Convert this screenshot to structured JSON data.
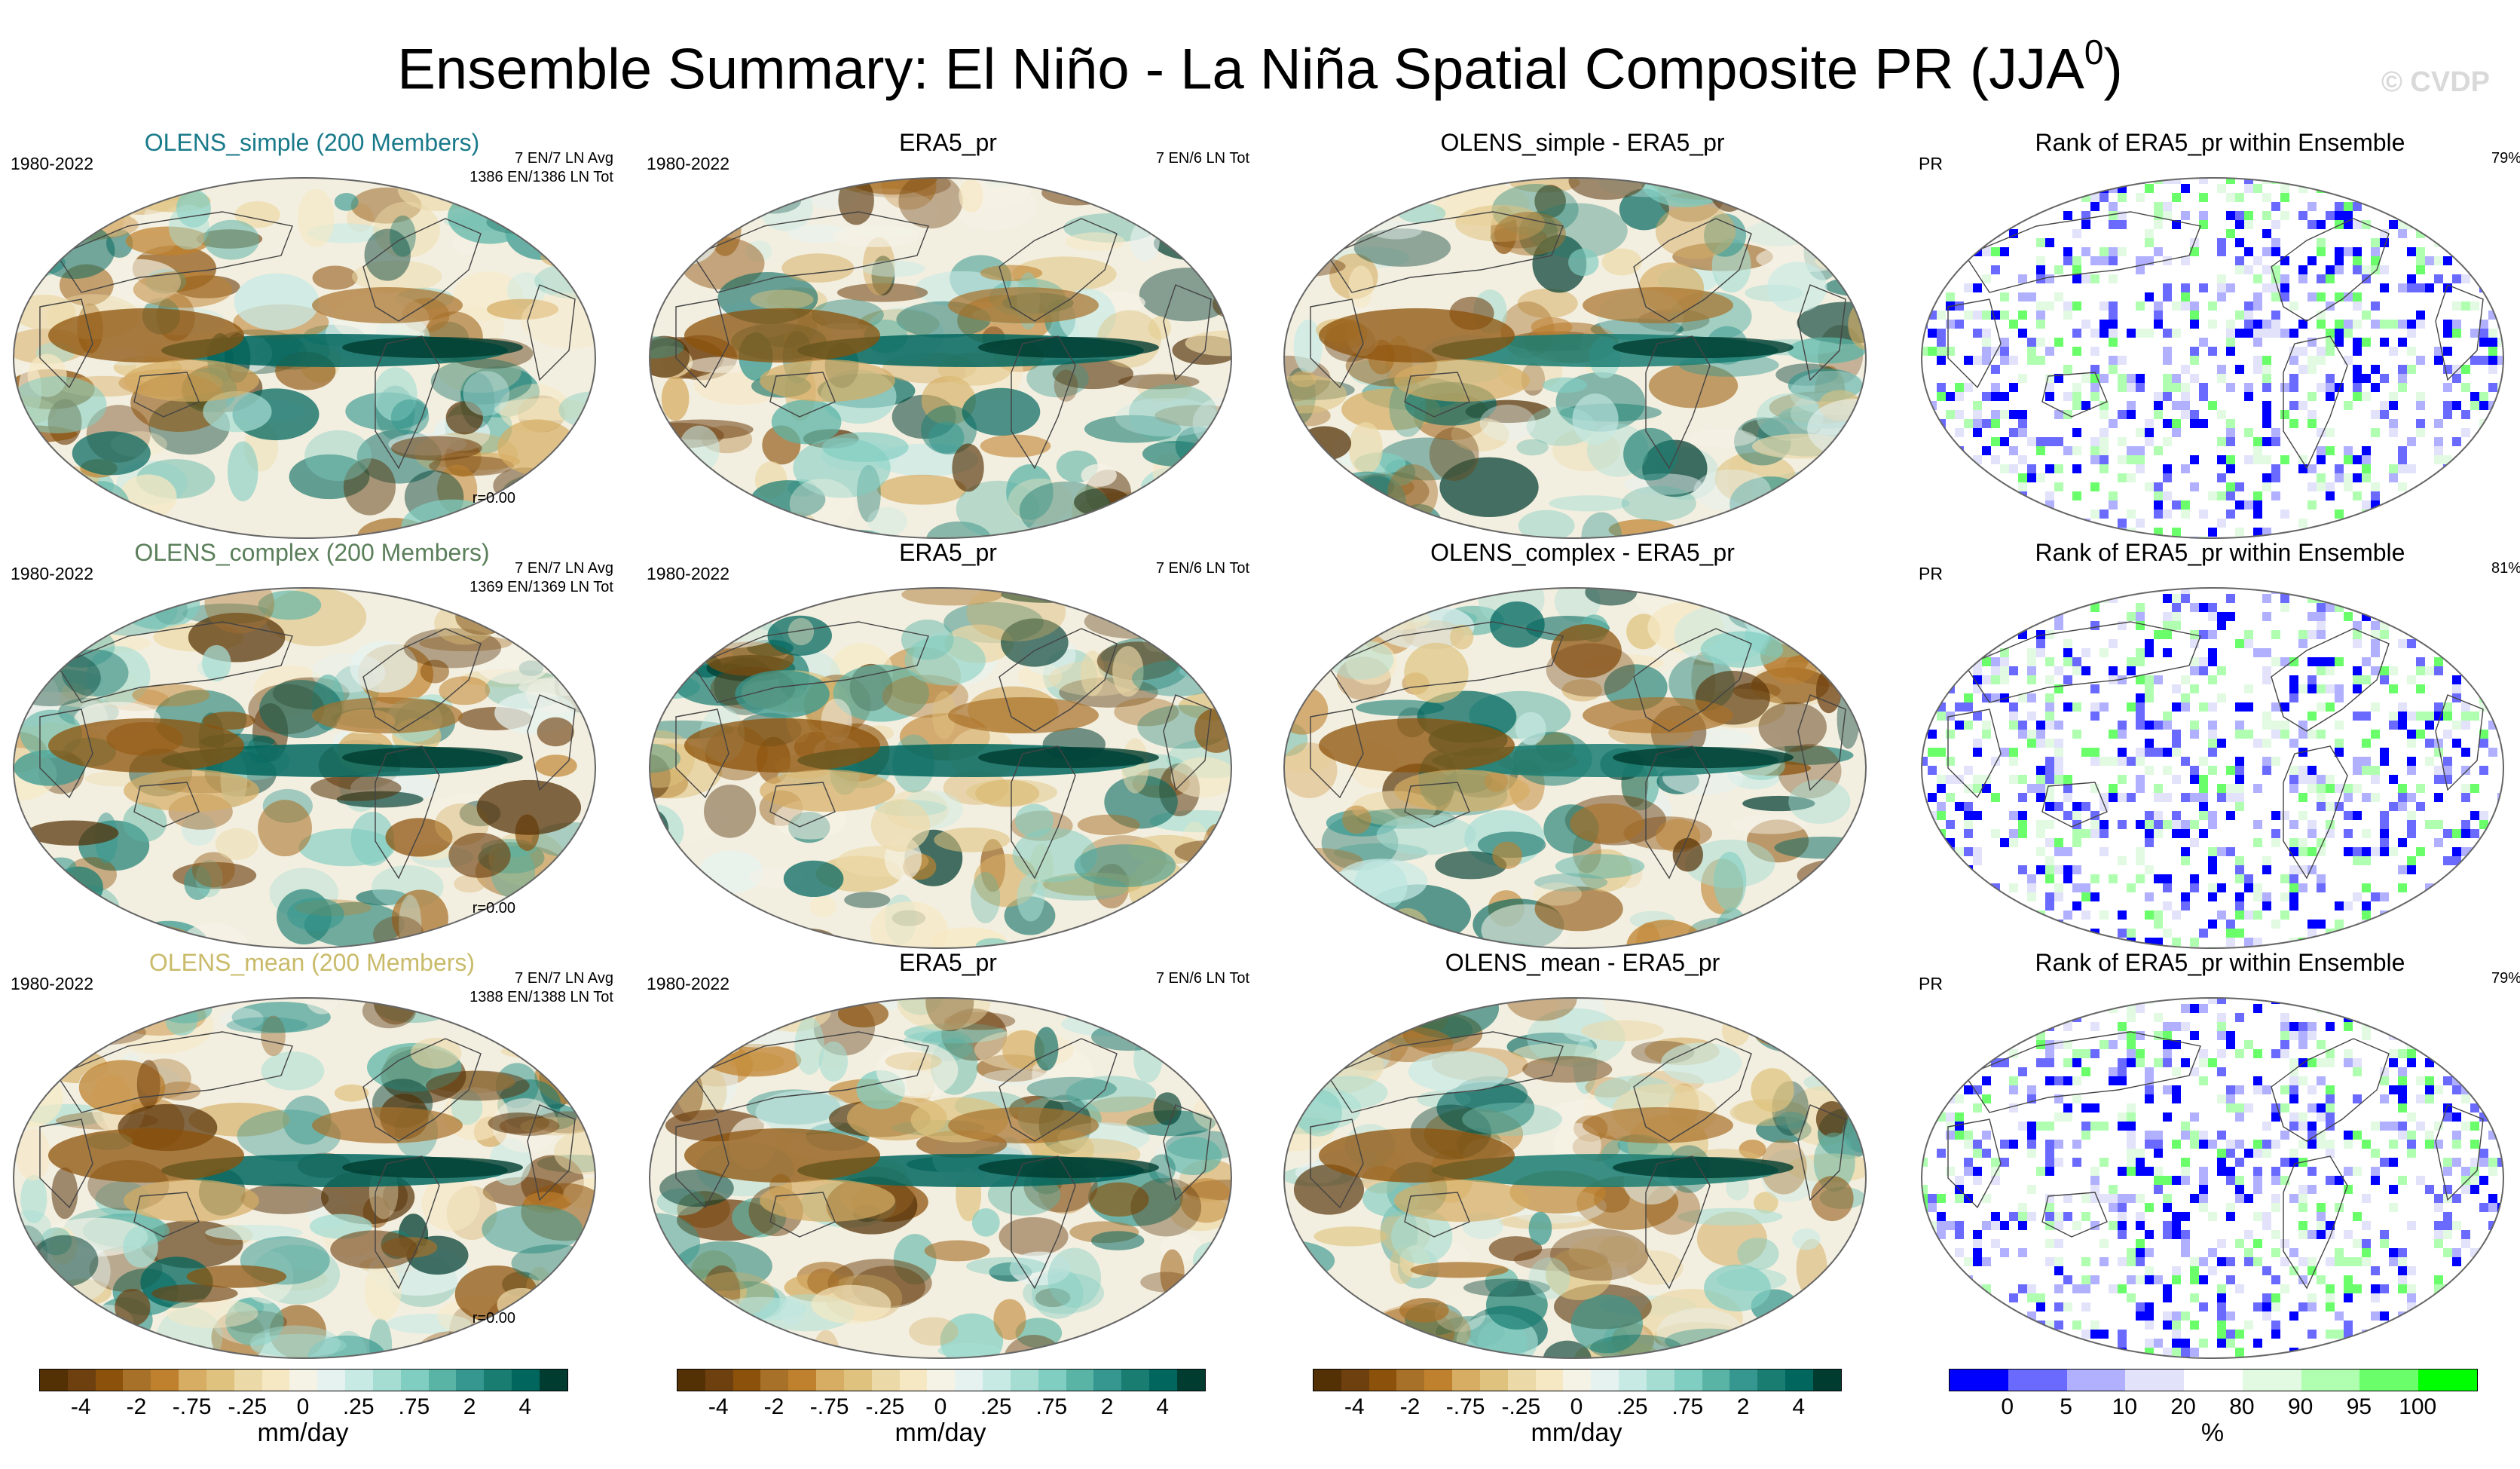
{
  "title": "Ensemble Summary: El Niño - La Niña Spatial Composite PR (JJA",
  "title_sup": "0",
  "title_close": ")",
  "watermark": "© CVDP",
  "rows": [
    {
      "panels": [
        {
          "title": "OLENS_simple (200 Members)",
          "title_color": "#1a7a8a",
          "left": "1980-2022",
          "right1": "7 EN/7 LN Avg",
          "right2": "1386 EN/1386 LN Tot",
          "r": "r=0.00",
          "kind": "model"
        },
        {
          "title": "ERA5_pr",
          "title_color": "#000000",
          "left": "1980-2022",
          "right1": "7 EN/6 LN Tot",
          "right2": "",
          "r": "",
          "kind": "obs"
        },
        {
          "title": "OLENS_simple - ERA5_pr",
          "title_color": "#000000",
          "left": "",
          "right1": "",
          "right2": "",
          "r": "",
          "kind": "diff"
        },
        {
          "title": "Rank of ERA5_pr within Ensemble",
          "title_color": "#000000",
          "left": "PR",
          "right1": "79%",
          "right2": "",
          "r": "",
          "kind": "rank"
        }
      ]
    },
    {
      "panels": [
        {
          "title": "OLENS_complex (200 Members)",
          "title_color": "#5a7f5a",
          "left": "1980-2022",
          "right1": "7 EN/7 LN Avg",
          "right2": "1369 EN/1369 LN Tot",
          "r": "r=0.00",
          "kind": "model"
        },
        {
          "title": "ERA5_pr",
          "title_color": "#000000",
          "left": "1980-2022",
          "right1": "7 EN/6 LN Tot",
          "right2": "",
          "r": "",
          "kind": "obs"
        },
        {
          "title": "OLENS_complex - ERA5_pr",
          "title_color": "#000000",
          "left": "",
          "right1": "",
          "right2": "",
          "r": "",
          "kind": "diff"
        },
        {
          "title": "Rank of ERA5_pr within Ensemble",
          "title_color": "#000000",
          "left": "PR",
          "right1": "81%",
          "right2": "",
          "r": "",
          "kind": "rank"
        }
      ]
    },
    {
      "panels": [
        {
          "title": "OLENS_mean (200 Members)",
          "title_color": "#c9bb6a",
          "left": "1980-2022",
          "right1": "7 EN/7 LN Avg",
          "right2": "1388 EN/1388 LN Tot",
          "r": "r=0.00",
          "kind": "model"
        },
        {
          "title": "ERA5_pr",
          "title_color": "#000000",
          "left": "1980-2022",
          "right1": "7 EN/6 LN Tot",
          "right2": "",
          "r": "",
          "kind": "obs"
        },
        {
          "title": "OLENS_mean - ERA5_pr",
          "title_color": "#000000",
          "left": "",
          "right1": "",
          "right2": "",
          "r": "",
          "kind": "diff"
        },
        {
          "title": "Rank of ERA5_pr within Ensemble",
          "title_color": "#000000",
          "left": "PR",
          "right1": "79%",
          "right2": "",
          "r": "",
          "kind": "rank"
        }
      ]
    }
  ],
  "colorbars": [
    {
      "unit": "mm/day",
      "labels": [
        "-4",
        "-2",
        "-.75",
        "-.25",
        "0",
        ".25",
        ".75",
        "2",
        "4"
      ],
      "colors": [
        "#543005",
        "#6e4010",
        "#8c510a",
        "#a8712a",
        "#bf812d",
        "#d6ad63",
        "#dfc27d",
        "#ecd9a8",
        "#f6e8c3",
        "#f5f2e6",
        "#e6f2f0",
        "#c7eae5",
        "#a6ddd3",
        "#80cdc1",
        "#5ab4a6",
        "#35978f",
        "#1a7d72",
        "#01665e",
        "#003c30"
      ]
    },
    {
      "unit": "mm/day",
      "labels": [
        "-4",
        "-2",
        "-.75",
        "-.25",
        "0",
        ".25",
        ".75",
        "2",
        "4"
      ],
      "colors": [
        "#543005",
        "#6e4010",
        "#8c510a",
        "#a8712a",
        "#bf812d",
        "#d6ad63",
        "#dfc27d",
        "#ecd9a8",
        "#f6e8c3",
        "#f5f2e6",
        "#e6f2f0",
        "#c7eae5",
        "#a6ddd3",
        "#80cdc1",
        "#5ab4a6",
        "#35978f",
        "#1a7d72",
        "#01665e",
        "#003c30"
      ]
    },
    {
      "unit": "mm/day",
      "labels": [
        "-4",
        "-2",
        "-.75",
        "-.25",
        "0",
        ".25",
        ".75",
        "2",
        "4"
      ],
      "colors": [
        "#543005",
        "#6e4010",
        "#8c510a",
        "#a8712a",
        "#bf812d",
        "#d6ad63",
        "#dfc27d",
        "#ecd9a8",
        "#f6e8c3",
        "#f5f2e6",
        "#e6f2f0",
        "#c7eae5",
        "#a6ddd3",
        "#80cdc1",
        "#5ab4a6",
        "#35978f",
        "#1a7d72",
        "#01665e",
        "#003c30"
      ]
    },
    {
      "unit": "%",
      "labels": [
        "0",
        "5",
        "10",
        "20",
        "80",
        "90",
        "95",
        "100"
      ],
      "colors": [
        "#0000ff",
        "#6a6aff",
        "#b0b0ff",
        "#e2e2fa",
        "#ffffff",
        "#e2fae2",
        "#b0ffb0",
        "#6aff6a",
        "#00ff00"
      ]
    }
  ]
}
